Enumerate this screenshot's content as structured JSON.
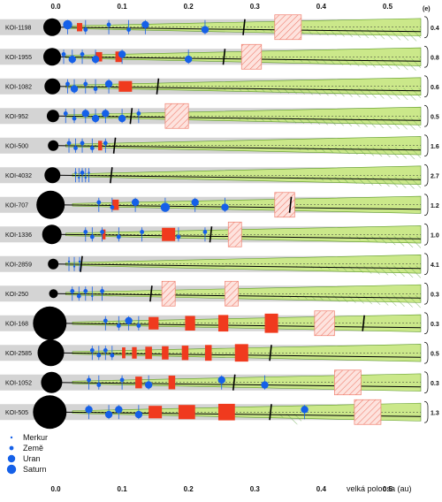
{
  "axis": {
    "title": "velká poloosa (au)",
    "ticks": [
      "0.0",
      "0.1",
      "0.2",
      "0.3",
      "0.4",
      "0.5"
    ],
    "tick_values": [
      0,
      0.1,
      0.2,
      0.3,
      0.4,
      0.5
    ],
    "xlim": [
      0,
      0.55
    ]
  },
  "right_header": "(e)",
  "legend": [
    {
      "label": "Merkur",
      "size_key": "merkur"
    },
    {
      "label": "Země",
      "size_key": "zeme"
    },
    {
      "label": "Uran",
      "size_key": "uran"
    },
    {
      "label": "Saturn",
      "size_key": "saturn"
    }
  ],
  "colors": {
    "star": "#000000",
    "planet": "#1560e8",
    "hz_zone": "#cbe88a",
    "hz_border": "#5e9a2a",
    "gray_band": "#d4d4d4",
    "red_box": "#f03a1e",
    "hatch_box": "#f08070",
    "hatch_green": "#6aa84f",
    "orbit_line": "#000000"
  },
  "systems": [
    {
      "name": "KOI-1198",
      "star": 10,
      "ecc": "0.4",
      "wedge": [
        0.01,
        0.55
      ],
      "flare": 0.22,
      "hz_tip": 0.3,
      "red": [
        [
          0.032,
          0.04
        ]
      ],
      "hatch_red": [
        [
          0.33,
          0.37
        ]
      ],
      "limit": 0.285,
      "hatch_green": [
        [
          0.25,
          0.55
        ]
      ],
      "planets": [
        {
          "a": 0.018,
          "s": "saturn"
        },
        {
          "a": 0.045,
          "s": "zeme"
        },
        {
          "a": 0.08,
          "s": "zeme"
        },
        {
          "a": 0.11,
          "s": "zeme"
        },
        {
          "a": 0.135,
          "s": "uran"
        },
        {
          "a": 0.225,
          "s": "uran"
        }
      ]
    },
    {
      "name": "KOI-1955",
      "star": 10,
      "ecc": "0.8",
      "wedge": [
        0.01,
        0.55
      ],
      "flare": 0.3,
      "hz_tip": 0.22,
      "red": [
        [
          0.06,
          0.07
        ],
        [
          0.09,
          0.1
        ]
      ],
      "hatch_red": [
        [
          0.28,
          0.31
        ]
      ],
      "limit": 0.255,
      "hatch_green": [
        [
          0.3,
          0.55
        ]
      ],
      "planets": [
        {
          "a": 0.012,
          "s": "zeme"
        },
        {
          "a": 0.025,
          "s": "uran"
        },
        {
          "a": 0.04,
          "s": "zeme"
        },
        {
          "a": 0.06,
          "s": "uran"
        },
        {
          "a": 0.1,
          "s": "uran"
        },
        {
          "a": 0.2,
          "s": "uran"
        }
      ]
    },
    {
      "name": "KOI-1082",
      "star": 9,
      "ecc": "0.6",
      "wedge": [
        0.01,
        0.55
      ],
      "flare": 0.24,
      "hz_tip": 0.1,
      "red": [
        [
          0.095,
          0.115
        ]
      ],
      "hatch_red": [],
      "limit": 0.155,
      "hatch_green": [
        [
          0.2,
          0.55
        ]
      ],
      "planets": [
        {
          "a": 0.018,
          "s": "zeme"
        },
        {
          "a": 0.028,
          "s": "uran"
        },
        {
          "a": 0.045,
          "s": "zeme"
        },
        {
          "a": 0.06,
          "s": "zeme"
        },
        {
          "a": 0.08,
          "s": "uran"
        }
      ]
    },
    {
      "name": "KOI-952",
      "star": 7,
      "ecc": "0.5",
      "wedge": [
        0.01,
        0.55
      ],
      "flare": 0.26,
      "hz_tip": 0.08,
      "red": [],
      "hatch_red": [
        [
          0.165,
          0.2
        ]
      ],
      "limit": 0.115,
      "hatch_green": [
        [
          0.22,
          0.55
        ]
      ],
      "planets": [
        {
          "a": 0.015,
          "s": "zeme"
        },
        {
          "a": 0.028,
          "s": "zeme"
        },
        {
          "a": 0.045,
          "s": "uran"
        },
        {
          "a": 0.06,
          "s": "uran"
        },
        {
          "a": 0.075,
          "s": "uran"
        },
        {
          "a": 0.1,
          "s": "uran"
        },
        {
          "a": 0.125,
          "s": "zeme"
        }
      ]
    },
    {
      "name": "KOI-500",
      "star": 6,
      "ecc": "1.6",
      "wedge": [
        0.01,
        0.55
      ],
      "flare": 0.34,
      "hz_tip": 0.09,
      "red": [
        [
          0.064,
          0.07
        ]
      ],
      "hatch_red": [],
      "limit": 0.09,
      "hatch_green": [
        [
          0.32,
          0.55
        ]
      ],
      "planets": [
        {
          "a": 0.02,
          "s": "zeme"
        },
        {
          "a": 0.03,
          "s": "zeme"
        },
        {
          "a": 0.04,
          "s": "zeme"
        },
        {
          "a": 0.055,
          "s": "zeme"
        },
        {
          "a": 0.075,
          "s": "zeme"
        }
      ]
    },
    {
      "name": "KOI-4032",
      "star": 9,
      "ecc": "2.7",
      "wedge": [
        0.02,
        0.55
      ],
      "flare": 0.36,
      "hz_tip": 0.05,
      "red": [],
      "hatch_red": [],
      "limit": 0.085,
      "hatch_green": [
        [
          0.34,
          0.55
        ]
      ],
      "planets": [
        {
          "a": 0.03,
          "s": "merkur"
        },
        {
          "a": 0.035,
          "s": "merkur"
        },
        {
          "a": 0.04,
          "s": "zeme"
        },
        {
          "a": 0.045,
          "s": "merkur"
        },
        {
          "a": 0.05,
          "s": "merkur"
        }
      ]
    },
    {
      "name": "KOI-707",
      "star": 16,
      "ecc": "1.2",
      "wedge": [
        0.02,
        0.55
      ],
      "flare": 0.16,
      "hz_tip": 0.25,
      "red": [
        [
          0.085,
          0.095
        ]
      ],
      "hatch_red": [
        [
          0.33,
          0.36
        ]
      ],
      "limit": 0.355,
      "hatch_green": [],
      "planets": [
        {
          "a": 0.065,
          "s": "zeme"
        },
        {
          "a": 0.085,
          "s": "zeme"
        },
        {
          "a": 0.12,
          "s": "uran"
        },
        {
          "a": 0.165,
          "s": "saturn"
        },
        {
          "a": 0.21,
          "s": "uran"
        },
        {
          "a": 0.255,
          "s": "uran"
        }
      ]
    },
    {
      "name": "KOI-1336",
      "star": 11,
      "ecc": "1.0",
      "wedge": [
        0.01,
        0.55
      ],
      "flare": 0.2,
      "hz_tip": 0.15,
      "red": [
        [
          0.07,
          0.075
        ],
        [
          0.16,
          0.18
        ]
      ],
      "hatch_red": [
        [
          0.26,
          0.28
        ]
      ],
      "limit": 0.235,
      "hatch_green": [
        [
          0.42,
          0.55
        ]
      ],
      "planets": [
        {
          "a": 0.045,
          "s": "zeme"
        },
        {
          "a": 0.055,
          "s": "zeme"
        },
        {
          "a": 0.07,
          "s": "zeme"
        },
        {
          "a": 0.095,
          "s": "zeme"
        },
        {
          "a": 0.13,
          "s": "zeme"
        },
        {
          "a": 0.185,
          "s": "zeme"
        },
        {
          "a": 0.225,
          "s": "zeme"
        }
      ]
    },
    {
      "name": "KOI-2859",
      "star": 6,
      "ecc": "4.1",
      "wedge": [
        0.01,
        0.55
      ],
      "flare": 0.36,
      "hz_tip": 0.06,
      "red": [],
      "hatch_red": [],
      "limit": 0.04,
      "hatch_green": [
        [
          0.35,
          0.55
        ]
      ],
      "planets": [
        {
          "a": 0.02,
          "s": "merkur"
        },
        {
          "a": 0.028,
          "s": "merkur"
        },
        {
          "a": 0.036,
          "s": "merkur"
        }
      ]
    },
    {
      "name": "KOI-250",
      "star": 5,
      "ecc": "0.3",
      "wedge": [
        0.01,
        0.55
      ],
      "flare": 0.28,
      "hz_tip": 0.08,
      "red": [],
      "hatch_red": [
        [
          0.16,
          0.18
        ],
        [
          0.255,
          0.275
        ]
      ],
      "limit": 0.145,
      "hatch_green": [
        [
          0.3,
          0.55
        ]
      ],
      "planets": [
        {
          "a": 0.025,
          "s": "zeme"
        },
        {
          "a": 0.035,
          "s": "zeme"
        },
        {
          "a": 0.045,
          "s": "zeme"
        },
        {
          "a": 0.055,
          "s": "merkur"
        },
        {
          "a": 0.07,
          "s": "zeme"
        }
      ]
    },
    {
      "name": "KOI-168",
      "star": 19,
      "ecc": "0.3",
      "wedge": [
        0.02,
        0.55
      ],
      "flare": 0.18,
      "hz_tip": 0.12,
      "red": [
        [
          0.14,
          0.155
        ],
        [
          0.195,
          0.21
        ],
        [
          0.245,
          0.26
        ],
        [
          0.315,
          0.335
        ]
      ],
      "hatch_red": [
        [
          0.39,
          0.42
        ]
      ],
      "limit": 0.465,
      "hatch_green": [],
      "planets": [
        {
          "a": 0.075,
          "s": "zeme"
        },
        {
          "a": 0.095,
          "s": "zeme"
        },
        {
          "a": 0.11,
          "s": "uran"
        },
        {
          "a": 0.125,
          "s": "zeme"
        }
      ]
    },
    {
      "name": "KOI-2585",
      "star": 15,
      "ecc": "0.5",
      "wedge": [
        0.02,
        0.55
      ],
      "flare": 0.2,
      "hz_tip": 0.12,
      "red": [
        [
          0.1,
          0.105
        ],
        [
          0.115,
          0.122
        ],
        [
          0.135,
          0.145
        ],
        [
          0.16,
          0.17
        ],
        [
          0.19,
          0.2
        ],
        [
          0.225,
          0.235
        ],
        [
          0.27,
          0.29
        ]
      ],
      "hatch_red": [],
      "limit": 0.325,
      "hatch_green": [],
      "planets": [
        {
          "a": 0.055,
          "s": "zeme"
        },
        {
          "a": 0.065,
          "s": "zeme"
        },
        {
          "a": 0.075,
          "s": "zeme"
        },
        {
          "a": 0.085,
          "s": "zeme"
        }
      ]
    },
    {
      "name": "KOI-1052",
      "star": 12,
      "ecc": "0.3",
      "wedge": [
        0.02,
        0.55
      ],
      "flare": 0.22,
      "hz_tip": 0.14,
      "red": [
        [
          0.12,
          0.13
        ],
        [
          0.17,
          0.18
        ]
      ],
      "hatch_red": [
        [
          0.42,
          0.46
        ]
      ],
      "limit": 0.27,
      "hatch_green": [],
      "planets": [
        {
          "a": 0.05,
          "s": "zeme"
        },
        {
          "a": 0.065,
          "s": "zeme"
        },
        {
          "a": 0.1,
          "s": "zeme"
        },
        {
          "a": 0.14,
          "s": "uran"
        },
        {
          "a": 0.25,
          "s": "uran"
        },
        {
          "a": 0.315,
          "s": "uran"
        }
      ]
    },
    {
      "name": "KOI-505",
      "star": 19,
      "ecc": "1.3",
      "wedge": [
        0.02,
        0.55
      ],
      "flare": 0.28,
      "hz_tip": 0.15,
      "red": [
        [
          0.14,
          0.16
        ],
        [
          0.185,
          0.21
        ],
        [
          0.245,
          0.27
        ]
      ],
      "hatch_red": [
        [
          0.45,
          0.49
        ]
      ],
      "limit": 0.325,
      "hatch_green": [
        [
          0.33,
          0.37
        ]
      ],
      "planets": [
        {
          "a": 0.05,
          "s": "uran"
        },
        {
          "a": 0.08,
          "s": "uran"
        },
        {
          "a": 0.095,
          "s": "uran"
        },
        {
          "a": 0.125,
          "s": "uran"
        },
        {
          "a": 0.375,
          "s": "uran"
        }
      ]
    }
  ]
}
